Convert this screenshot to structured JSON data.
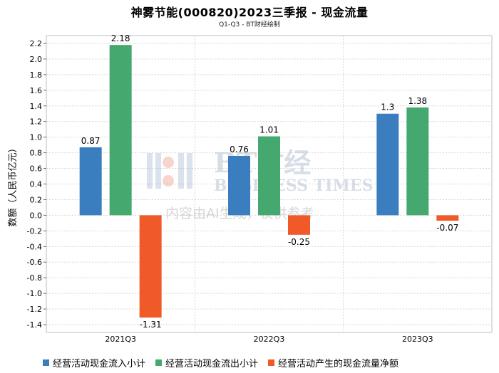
{
  "title": "神雾节能(000820)2023三季报 - 现金流量",
  "subtitle": "Q1-Q3 - BT财经绘制",
  "watermark": {
    "brand": "BT财经",
    "brand_en": "BUSINESS TIMES",
    "note": "内容由AI生成，仅供参考"
  },
  "chart_data": {
    "type": "bar",
    "categories": [
      "2021Q3",
      "2022Q3",
      "2023Q3"
    ],
    "series": [
      {
        "name": "经营活动现金流入小计",
        "color": "#3a7ebf",
        "values": [
          0.87,
          0.76,
          1.3
        ],
        "labels": [
          "0.87",
          "0.76",
          "1.3"
        ]
      },
      {
        "name": "经营活动现金流出小计",
        "color": "#45a86f",
        "values": [
          2.18,
          1.01,
          1.38
        ],
        "labels": [
          "2.18",
          "1.01",
          "1.38"
        ]
      },
      {
        "name": "经营活动产生的现金流量净额",
        "color": "#f05a28",
        "values": [
          -1.31,
          -0.25,
          -0.07
        ],
        "labels": [
          "-1.31",
          "-0.25",
          "-0.07"
        ]
      }
    ],
    "ylabel": "数额（人民币亿元）",
    "ylim": [
      -1.4,
      2.2
    ],
    "yticks": [
      "-1.4",
      "-1.2",
      "-1.0",
      "-0.8",
      "-0.6",
      "-0.4",
      "-0.2",
      "0.0",
      "0.2",
      "0.4",
      "0.6",
      "0.8",
      "1.0",
      "1.2",
      "1.4",
      "1.6",
      "1.8",
      "2.0",
      "2.2"
    ],
    "grid": true,
    "legend_position": "bottom"
  }
}
